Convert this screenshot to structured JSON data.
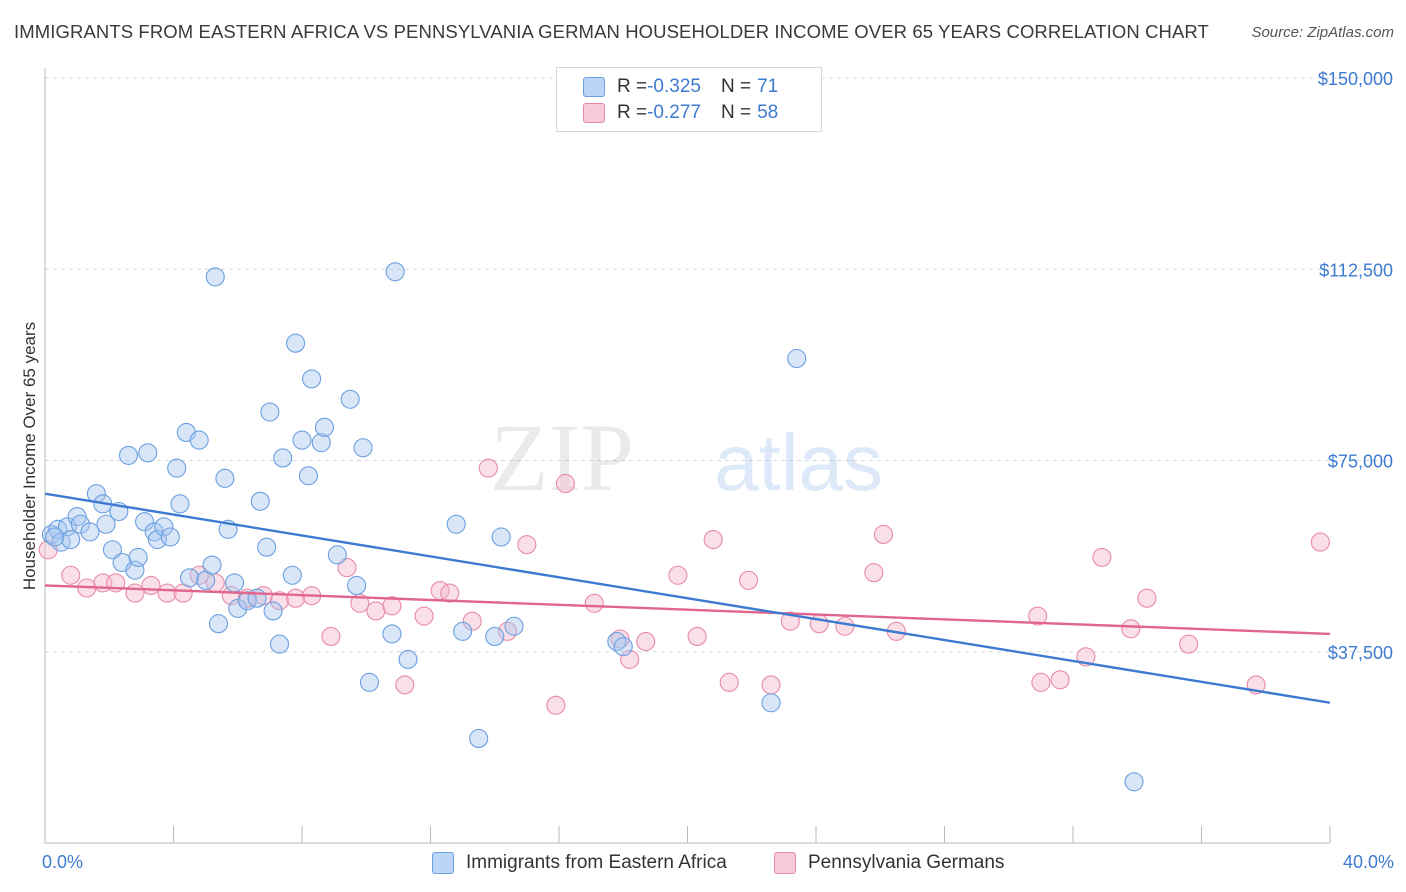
{
  "header": {
    "title": "IMMIGRANTS FROM EASTERN AFRICA VS PENNSYLVANIA GERMAN HOUSEHOLDER INCOME OVER 65 YEARS CORRELATION CHART",
    "source": "Source: ZipAtlas.com"
  },
  "watermark": {
    "zip": "ZIP",
    "atlas": "atlas"
  },
  "legend": {
    "rows": [
      {
        "r_label": "R = ",
        "r_value": "-0.325",
        "n_label": "N = ",
        "n_value": "71",
        "color": "#a8c8f0"
      },
      {
        "r_label": "R = ",
        "r_value": "-0.277",
        "n_label": "N = ",
        "n_value": "58",
        "color": "#f5b8cb"
      }
    ]
  },
  "bottom_legend": {
    "series1": "Immigrants from Eastern Africa",
    "series2": "Pennsylvania Germans"
  },
  "chart_data": {
    "type": "scatter",
    "title": "IMMIGRANTS FROM EASTERN AFRICA VS PENNSYLVANIA GERMAN HOUSEHOLDER INCOME OVER 65 YEARS CORRELATION CHART",
    "xlabel": "",
    "ylabel": "Householder Income Over 65 years",
    "xlim": [
      0,
      40
    ],
    "ylim": [
      0,
      152000
    ],
    "x_tick_labels": [
      "0.0%",
      "40.0%"
    ],
    "y_ticks": [
      37500,
      75000,
      112500,
      150000
    ],
    "y_tick_labels": [
      "$37,500",
      "$75,000",
      "$112,500",
      "$150,000"
    ],
    "grid": true,
    "colors": {
      "series1": "#3d7bd1",
      "series1_fill": "#a8c8f0",
      "series2": "#e0658f",
      "series2_fill": "#f5b8cb"
    },
    "series": [
      {
        "name": "Immigrants from Eastern Africa",
        "trend": {
          "x": [
            0,
            40
          ],
          "y": [
            68500,
            27500
          ]
        },
        "points": [
          [
            0.2,
            60500
          ],
          [
            0.4,
            61500
          ],
          [
            0.5,
            59000
          ],
          [
            0.7,
            62000
          ],
          [
            1.0,
            64000
          ],
          [
            1.1,
            62500
          ],
          [
            0.8,
            59500
          ],
          [
            1.4,
            61000
          ],
          [
            1.6,
            68500
          ],
          [
            1.8,
            66500
          ],
          [
            1.9,
            62500
          ],
          [
            2.1,
            57500
          ],
          [
            2.3,
            65000
          ],
          [
            2.4,
            55000
          ],
          [
            2.6,
            76000
          ],
          [
            2.8,
            53500
          ],
          [
            2.9,
            56000
          ],
          [
            3.1,
            63000
          ],
          [
            3.2,
            76500
          ],
          [
            3.4,
            61000
          ],
          [
            3.5,
            59500
          ],
          [
            3.7,
            62000
          ],
          [
            3.9,
            60000
          ],
          [
            4.1,
            73500
          ],
          [
            4.2,
            66500
          ],
          [
            4.4,
            80500
          ],
          [
            4.5,
            52000
          ],
          [
            4.8,
            79000
          ],
          [
            5.0,
            51500
          ],
          [
            5.2,
            54500
          ],
          [
            5.3,
            111000
          ],
          [
            5.4,
            43000
          ],
          [
            5.6,
            71500
          ],
          [
            5.7,
            61500
          ],
          [
            5.9,
            51000
          ],
          [
            6.0,
            46000
          ],
          [
            6.3,
            47500
          ],
          [
            6.6,
            48000
          ],
          [
            6.7,
            67000
          ],
          [
            6.9,
            58000
          ],
          [
            7.0,
            84500
          ],
          [
            7.1,
            45500
          ],
          [
            7.3,
            39000
          ],
          [
            7.4,
            75500
          ],
          [
            7.7,
            52500
          ],
          [
            7.8,
            98000
          ],
          [
            8.0,
            79000
          ],
          [
            8.2,
            72000
          ],
          [
            8.3,
            91000
          ],
          [
            8.6,
            78500
          ],
          [
            8.7,
            81500
          ],
          [
            9.1,
            56500
          ],
          [
            9.5,
            87000
          ],
          [
            9.7,
            50500
          ],
          [
            9.9,
            77500
          ],
          [
            10.1,
            31500
          ],
          [
            10.8,
            41000
          ],
          [
            10.9,
            112000
          ],
          [
            11.3,
            36000
          ],
          [
            12.8,
            62500
          ],
          [
            13.0,
            41500
          ],
          [
            13.5,
            20500
          ],
          [
            14.0,
            40500
          ],
          [
            14.2,
            60000
          ],
          [
            14.6,
            42500
          ],
          [
            17.8,
            39500
          ],
          [
            18.0,
            38500
          ],
          [
            22.6,
            27500
          ],
          [
            23.4,
            95000
          ],
          [
            33.9,
            12000
          ],
          [
            0.3,
            60000
          ]
        ]
      },
      {
        "name": "Pennsylvania Germans",
        "trend": {
          "x": [
            0,
            40
          ],
          "y": [
            50500,
            41000
          ]
        },
        "points": [
          [
            0.1,
            57500
          ],
          [
            0.8,
            52500
          ],
          [
            1.3,
            50000
          ],
          [
            1.8,
            51000
          ],
          [
            2.2,
            51000
          ],
          [
            2.8,
            49000
          ],
          [
            3.3,
            50500
          ],
          [
            3.8,
            49000
          ],
          [
            4.3,
            49000
          ],
          [
            4.8,
            52500
          ],
          [
            5.3,
            51000
          ],
          [
            5.8,
            48500
          ],
          [
            6.3,
            48000
          ],
          [
            6.8,
            48500
          ],
          [
            7.3,
            47500
          ],
          [
            7.8,
            48000
          ],
          [
            8.3,
            48500
          ],
          [
            8.9,
            40500
          ],
          [
            9.4,
            54000
          ],
          [
            9.8,
            47000
          ],
          [
            10.3,
            45500
          ],
          [
            10.8,
            46500
          ],
          [
            11.2,
            31000
          ],
          [
            11.8,
            44500
          ],
          [
            12.3,
            49500
          ],
          [
            12.6,
            49000
          ],
          [
            13.3,
            43500
          ],
          [
            13.8,
            73500
          ],
          [
            14.4,
            41500
          ],
          [
            15.0,
            58500
          ],
          [
            15.9,
            27000
          ],
          [
            16.2,
            70500
          ],
          [
            17.1,
            47000
          ],
          [
            17.9,
            40000
          ],
          [
            18.2,
            36000
          ],
          [
            18.7,
            39500
          ],
          [
            19.7,
            52500
          ],
          [
            20.3,
            40500
          ],
          [
            20.8,
            59500
          ],
          [
            21.3,
            31500
          ],
          [
            21.9,
            51500
          ],
          [
            22.6,
            31000
          ],
          [
            23.2,
            43500
          ],
          [
            24.1,
            43000
          ],
          [
            24.9,
            42500
          ],
          [
            25.8,
            53000
          ],
          [
            26.1,
            60500
          ],
          [
            26.5,
            41500
          ],
          [
            30.9,
            44500
          ],
          [
            31.0,
            31500
          ],
          [
            31.6,
            32000
          ],
          [
            32.4,
            36500
          ],
          [
            32.9,
            56000
          ],
          [
            33.8,
            42000
          ],
          [
            34.3,
            48000
          ],
          [
            35.6,
            39000
          ],
          [
            37.7,
            31000
          ],
          [
            39.7,
            59000
          ]
        ]
      }
    ]
  }
}
